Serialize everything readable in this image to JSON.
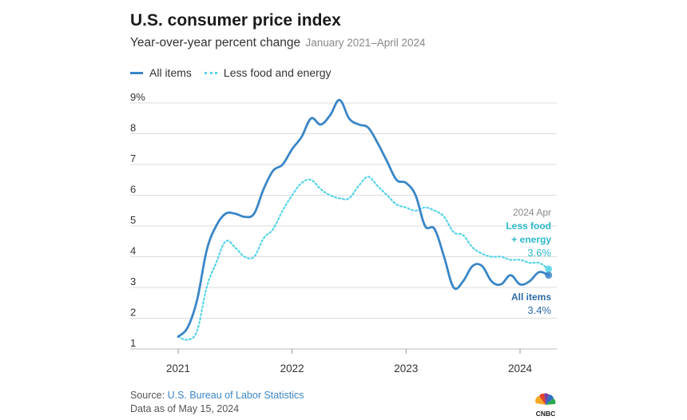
{
  "header": {
    "title": "U.S. consumer price index",
    "subtitle": "Year-over-year percent change",
    "subtitle_range": "January 2021–April 2024"
  },
  "legend": {
    "all_items": "All items",
    "less_food_energy": "Less food and energy"
  },
  "footer": {
    "source_prefix": "Source: ",
    "source_link": "U.S. Bureau of Labor Statistics",
    "as_of": "Data as of May 15, 2024",
    "logo_text": "CNBC"
  },
  "annotations": {
    "date": "2024 Apr",
    "core_label_1": "Less food",
    "core_label_2": "+ energy",
    "core_value": "3.6%",
    "all_label": "All items",
    "all_value": "3.4%"
  },
  "colors": {
    "all_items": "#3a86c8",
    "core": "#57d4e6",
    "all_items_dark": "#2e6aa8",
    "core_text": "#2bb8cc"
  },
  "chart_data": {
    "type": "line",
    "x_start": "2021-01",
    "x_end": "2024-04",
    "ylim": [
      1,
      9
    ],
    "x_ticks": [
      "2021",
      "2022",
      "2023",
      "2024"
    ],
    "y_ticks": [
      "1",
      "2",
      "3",
      "4",
      "5",
      "6",
      "7",
      "8",
      "9%"
    ],
    "grid": true,
    "legend_position": "top-left",
    "series": [
      {
        "name": "All items",
        "style": "solid",
        "values": [
          1.4,
          1.7,
          2.6,
          4.2,
          5.0,
          5.4,
          5.4,
          5.3,
          5.4,
          6.2,
          6.8,
          7.0,
          7.5,
          7.9,
          8.5,
          8.3,
          8.6,
          9.1,
          8.5,
          8.3,
          8.2,
          7.7,
          7.1,
          6.5,
          6.4,
          6.0,
          5.0,
          4.9,
          4.0,
          3.0,
          3.2,
          3.7,
          3.7,
          3.2,
          3.1,
          3.4,
          3.1,
          3.2,
          3.5,
          3.4
        ]
      },
      {
        "name": "Less food and energy",
        "style": "dotted",
        "values": [
          1.4,
          1.3,
          1.6,
          3.0,
          3.8,
          4.5,
          4.3,
          4.0,
          4.0,
          4.6,
          4.9,
          5.5,
          6.0,
          6.4,
          6.5,
          6.2,
          6.0,
          5.9,
          5.9,
          6.3,
          6.6,
          6.3,
          6.0,
          5.7,
          5.6,
          5.5,
          5.6,
          5.5,
          5.3,
          4.8,
          4.7,
          4.3,
          4.1,
          4.0,
          4.0,
          3.9,
          3.9,
          3.8,
          3.8,
          3.6
        ]
      }
    ]
  }
}
